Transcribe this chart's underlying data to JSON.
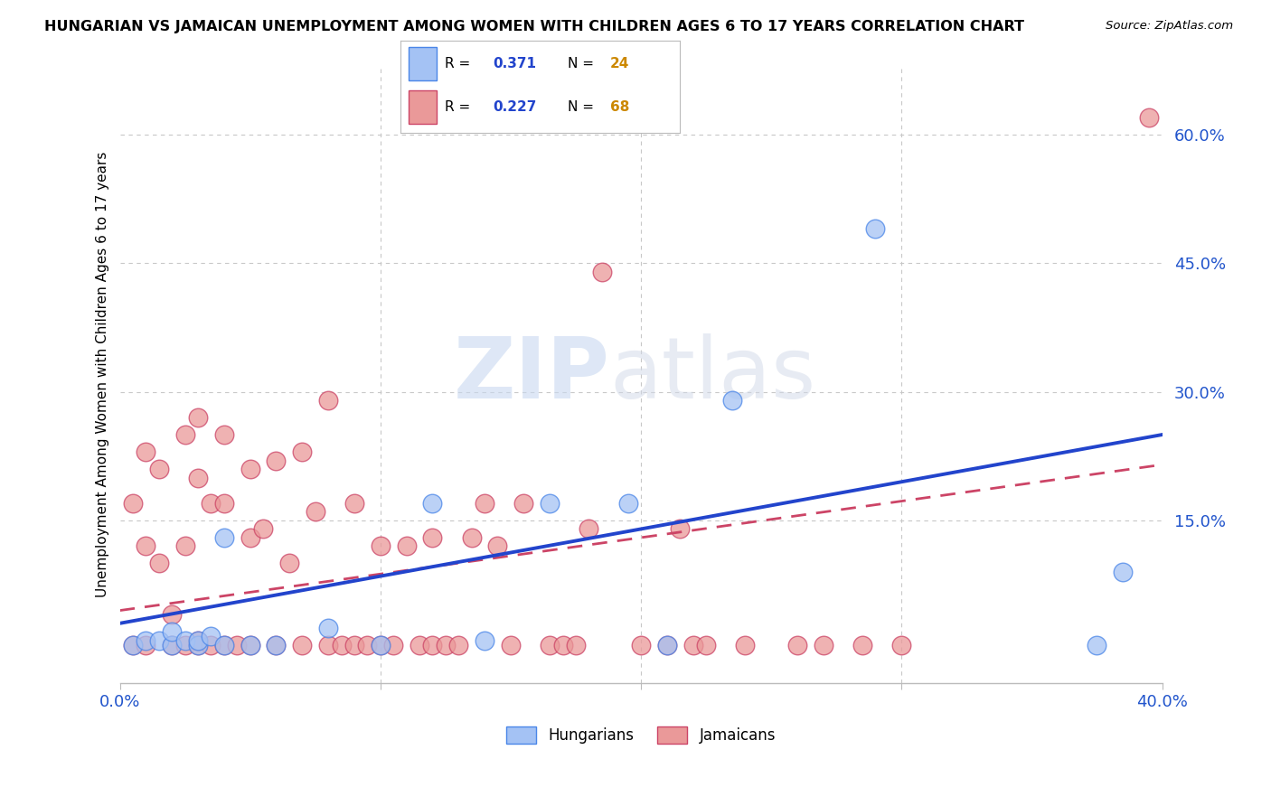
{
  "title": "HUNGARIAN VS JAMAICAN UNEMPLOYMENT AMONG WOMEN WITH CHILDREN AGES 6 TO 17 YEARS CORRELATION CHART",
  "source": "Source: ZipAtlas.com",
  "ylabel": "Unemployment Among Women with Children Ages 6 to 17 years",
  "xmin": 0.0,
  "xmax": 0.4,
  "ymin": -0.04,
  "ymax": 0.68,
  "yticks": [
    0.15,
    0.3,
    0.45,
    0.6
  ],
  "ytick_labels": [
    "15.0%",
    "30.0%",
    "45.0%",
    "60.0%"
  ],
  "xticks": [
    0.0,
    0.1,
    0.2,
    0.3,
    0.4
  ],
  "xtick_labels": [
    "0.0%",
    "",
    "",
    "",
    "40.0%"
  ],
  "legend_R_hungarian": "0.371",
  "legend_N_hungarian": "24",
  "legend_R_jamaican": "0.227",
  "legend_N_jamaican": "68",
  "hungarian_color": "#a4c2f4",
  "jamaican_color": "#ea9999",
  "hungarian_edge": "#4a86e8",
  "jamaican_edge": "#cc4466",
  "trend_blue": "#2244cc",
  "trend_pink": "#cc4466",
  "watermark_zip": "ZIP",
  "watermark_atlas": "atlas",
  "hungarian_x": [
    0.005,
    0.01,
    0.015,
    0.02,
    0.02,
    0.025,
    0.03,
    0.03,
    0.035,
    0.04,
    0.04,
    0.05,
    0.06,
    0.08,
    0.1,
    0.12,
    0.14,
    0.165,
    0.195,
    0.21,
    0.235,
    0.29,
    0.375,
    0.385
  ],
  "hungarian_y": [
    0.005,
    0.01,
    0.01,
    0.005,
    0.02,
    0.01,
    0.005,
    0.01,
    0.015,
    0.005,
    0.13,
    0.005,
    0.005,
    0.025,
    0.005,
    0.17,
    0.01,
    0.17,
    0.17,
    0.005,
    0.29,
    0.49,
    0.005,
    0.09
  ],
  "jamaican_x": [
    0.005,
    0.005,
    0.01,
    0.01,
    0.01,
    0.015,
    0.015,
    0.02,
    0.02,
    0.025,
    0.025,
    0.025,
    0.03,
    0.03,
    0.03,
    0.03,
    0.035,
    0.035,
    0.04,
    0.04,
    0.04,
    0.045,
    0.05,
    0.05,
    0.05,
    0.055,
    0.06,
    0.06,
    0.065,
    0.07,
    0.07,
    0.075,
    0.08,
    0.08,
    0.085,
    0.09,
    0.09,
    0.095,
    0.1,
    0.1,
    0.105,
    0.11,
    0.115,
    0.12,
    0.12,
    0.125,
    0.13,
    0.135,
    0.14,
    0.145,
    0.15,
    0.155,
    0.165,
    0.17,
    0.175,
    0.18,
    0.185,
    0.2,
    0.21,
    0.215,
    0.22,
    0.225,
    0.24,
    0.26,
    0.27,
    0.285,
    0.3,
    0.395
  ],
  "jamaican_y": [
    0.005,
    0.17,
    0.005,
    0.12,
    0.23,
    0.1,
    0.21,
    0.005,
    0.04,
    0.005,
    0.12,
    0.25,
    0.005,
    0.01,
    0.2,
    0.27,
    0.005,
    0.17,
    0.005,
    0.17,
    0.25,
    0.005,
    0.005,
    0.13,
    0.21,
    0.14,
    0.005,
    0.22,
    0.1,
    0.005,
    0.23,
    0.16,
    0.005,
    0.29,
    0.005,
    0.005,
    0.17,
    0.005,
    0.005,
    0.12,
    0.005,
    0.12,
    0.005,
    0.005,
    0.13,
    0.005,
    0.005,
    0.13,
    0.17,
    0.12,
    0.005,
    0.17,
    0.005,
    0.005,
    0.005,
    0.14,
    0.44,
    0.005,
    0.005,
    0.14,
    0.005,
    0.005,
    0.005,
    0.005,
    0.005,
    0.005,
    0.005,
    0.62
  ]
}
